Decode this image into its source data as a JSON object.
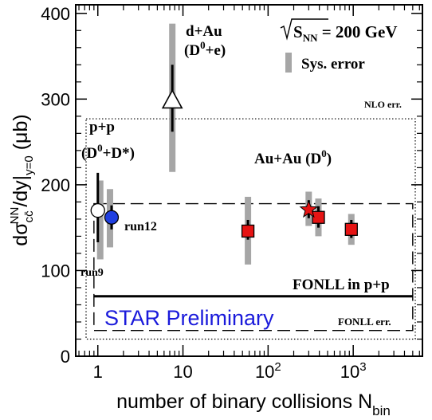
{
  "chart_data": {
    "type": "scatter",
    "x_scale": "log",
    "y_scale": "linear",
    "xlim": [
      0.55,
      6500
    ],
    "ylim": [
      0,
      410
    ],
    "ylabel_main": "dσ",
    "ylabel_sup_nn": "NN",
    "ylabel_sub_cc": "cc̄",
    "ylabel_mid": "/dy|",
    "ylabel_sub_y0": "y=0",
    "ylabel_unit": " (μb)",
    "xlabel_main": "number of binary collisions N",
    "xlabel_sub": "bin",
    "y_ticks": [
      0,
      100,
      200,
      300,
      400
    ],
    "x_major_ticks": [
      1,
      10,
      100,
      1000
    ],
    "x_tick_labels": [
      {
        "x": 1,
        "base": "1",
        "exp": ""
      },
      {
        "x": 10,
        "base": "10",
        "exp": ""
      },
      {
        "x": 100,
        "base": "10",
        "exp": "2"
      },
      {
        "x": 1000,
        "base": "10",
        "exp": "3"
      }
    ],
    "series": [
      {
        "name": "run9",
        "marker": "open-circle",
        "color": "#ffffff",
        "points": [
          {
            "x": 1.0,
            "y": 170,
            "stat": [
              133,
              214
            ],
            "sys": [
              113,
              205
            ]
          }
        ]
      },
      {
        "name": "run12",
        "marker": "filled-circle",
        "color": "#1f3fe0",
        "points": [
          {
            "x": 1.45,
            "y": 162,
            "stat": [
              148,
              176
            ],
            "sys": [
              127,
              195
            ]
          }
        ]
      },
      {
        "name": "d+Au (D0+e)",
        "marker": "open-triangle",
        "color": "#ffffff",
        "points": [
          {
            "x": 7.5,
            "y": 298,
            "stat": [
              262,
              340
            ],
            "sys": [
              215,
              388
            ]
          }
        ]
      },
      {
        "name": "Au+Au (D0)",
        "marker": "square",
        "color": "#e61414",
        "points": [
          {
            "x": 58,
            "y": 146,
            "stat": [
              136,
              159
            ],
            "sys": [
              107,
              186
            ]
          },
          {
            "x": 390,
            "y": 162,
            "stat": [
              150,
              175
            ],
            "sys": [
              140,
              184
            ]
          },
          {
            "x": 950,
            "y": 148,
            "stat": [
              138,
              159
            ],
            "sys": [
              130,
              166
            ]
          }
        ]
      },
      {
        "name": "Au+Au star",
        "marker": "star",
        "color": "#e61414",
        "points": [
          {
            "x": 300,
            "y": 171,
            "stat": [
              161,
              182
            ],
            "sys": [
              152,
              192
            ]
          }
        ]
      }
    ],
    "fonll_central": 70,
    "fonll_err": [
      30,
      178
    ],
    "nlo_err": [
      20,
      277
    ],
    "band_x": [
      0.9,
      5000
    ],
    "annotations": {
      "energy_sqrt": "S",
      "energy_sub": "NN",
      "energy_rest": " = 200 GeV",
      "sys_legend": "Sys. error",
      "dau_label": "d+Au",
      "dau_sub_open": "(D",
      "dau_sub_sup": "0",
      "dau_sub_close": "+e)",
      "pp_label": "p+p",
      "pp_sub_open": "(D",
      "pp_sub_sup": "0",
      "pp_sub_close": "+D*)",
      "auau_open": "Au+Au (D",
      "auau_sup": "0",
      "auau_close": ")",
      "run12": "run12",
      "run9": "run9",
      "nlo": "NLO err.",
      "fonll_pp": "FONLL in p+p",
      "fonll_err": "FONLL err.",
      "star": "STAR Preliminary"
    },
    "colors": {
      "sys_bar": "#a6a6a6",
      "star_text": "#1a1adb",
      "axis": "#000000"
    }
  }
}
